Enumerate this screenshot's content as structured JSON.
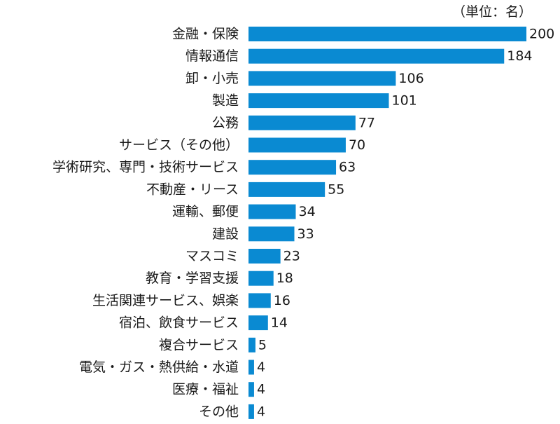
{
  "chart_data": {
    "type": "bar",
    "orientation": "horizontal",
    "unit_label": "（単位：名）",
    "bar_color": "#0a8ad2",
    "xlim": [
      0,
      200
    ],
    "categories": [
      "金融・保険",
      "情報通信",
      "卸・小売",
      "製造",
      "公務",
      "サービス（その他）",
      "学術研究、専門・技術サービス",
      "不動産・リース",
      "運輸、郵便",
      "建設",
      "マスコミ",
      "教育・学習支援",
      "生活関連サービス、娯楽",
      "宿泊、飲食サービス",
      "複合サービス",
      "電気・ガス・熱供給・水道",
      "医療・福祉",
      "その他"
    ],
    "values": [
      200,
      184,
      106,
      101,
      77,
      70,
      63,
      55,
      34,
      33,
      23,
      18,
      16,
      14,
      5,
      4,
      4,
      4
    ]
  }
}
